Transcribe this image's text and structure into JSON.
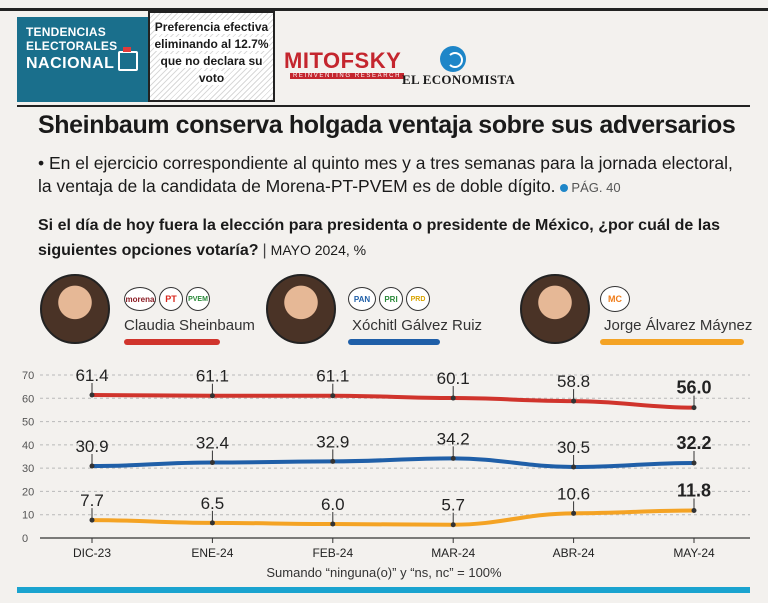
{
  "badge": {
    "line1": "TENDENCIAS",
    "line2": "ELECTORALES",
    "line3": "NACIONAL"
  },
  "note": {
    "text": "Preferencia efectiva eliminando al 12.7% que no declara su voto"
  },
  "logos": {
    "mitofsky": "MITOFSKY",
    "mitofsky_sub": "REINVENTING RESEARCH",
    "economista": "EL ECONOMISTA"
  },
  "headline": "Sheinbaum conserva holgada ventaja sobre sus adversarios",
  "lede": "• En el ejercicio correspondiente al quinto mes y a tres semanas para la jornada electoral, la ventaja de la candidata de Morena-PT-PVEM es de doble dígito.",
  "page_ref": "PÁG. 40",
  "question": "Si el día de hoy fuera la elección para presidenta o presidente de México, ¿por cuál de las siguientes opciones votaría?",
  "question_sep": "|",
  "question_meta": "MAYO 2024, %",
  "candidates": [
    {
      "name": "Claudia Sheinbaum",
      "parties": [
        "morena",
        "PT",
        "PVEM"
      ],
      "color": "#d0342c"
    },
    {
      "name": "Xóchitl Gálvez Ruiz",
      "parties": [
        "PAN",
        "PRI",
        "PRD"
      ],
      "color": "#1f5fa8"
    },
    {
      "name": "Jorge Álvarez Máynez",
      "parties": [
        "MC"
      ],
      "color": "#f4a324"
    }
  ],
  "footnote": "Sumando “ninguna(o)” y “ns, nc” = 100%",
  "chart_data": {
    "type": "line",
    "categories": [
      "DIC-23",
      "ENE-24",
      "FEB-24",
      "MAR-24",
      "ABR-24",
      "MAY-24"
    ],
    "series": [
      {
        "name": "Claudia Sheinbaum",
        "values": [
          61.4,
          61.1,
          61.1,
          60.1,
          58.8,
          56.0
        ],
        "labels": [
          "61.4",
          "61.1",
          "61.1",
          "60.1",
          "58.8",
          "56.0"
        ],
        "color": "#d0342c"
      },
      {
        "name": "Xóchitl Gálvez Ruiz",
        "values": [
          30.9,
          32.4,
          32.9,
          34.2,
          30.5,
          32.2
        ],
        "labels": [
          "30.9",
          "32.4",
          "32.9",
          "34.2",
          "30.5",
          "32.2"
        ],
        "color": "#1f5fa8"
      },
      {
        "name": "Jorge Álvarez Máynez",
        "values": [
          7.7,
          6.5,
          6.0,
          5.7,
          10.6,
          11.8
        ],
        "labels": [
          "7.7",
          "6.5",
          "6.0",
          "5.7",
          "10.6",
          "11.8"
        ],
        "color": "#f4a324"
      }
    ],
    "yticks": [
      "0",
      "10",
      "20",
      "30",
      "40",
      "50",
      "60",
      "70"
    ],
    "ylim": [
      0,
      70
    ],
    "xlabel": "",
    "ylabel": "%",
    "grid": true
  }
}
